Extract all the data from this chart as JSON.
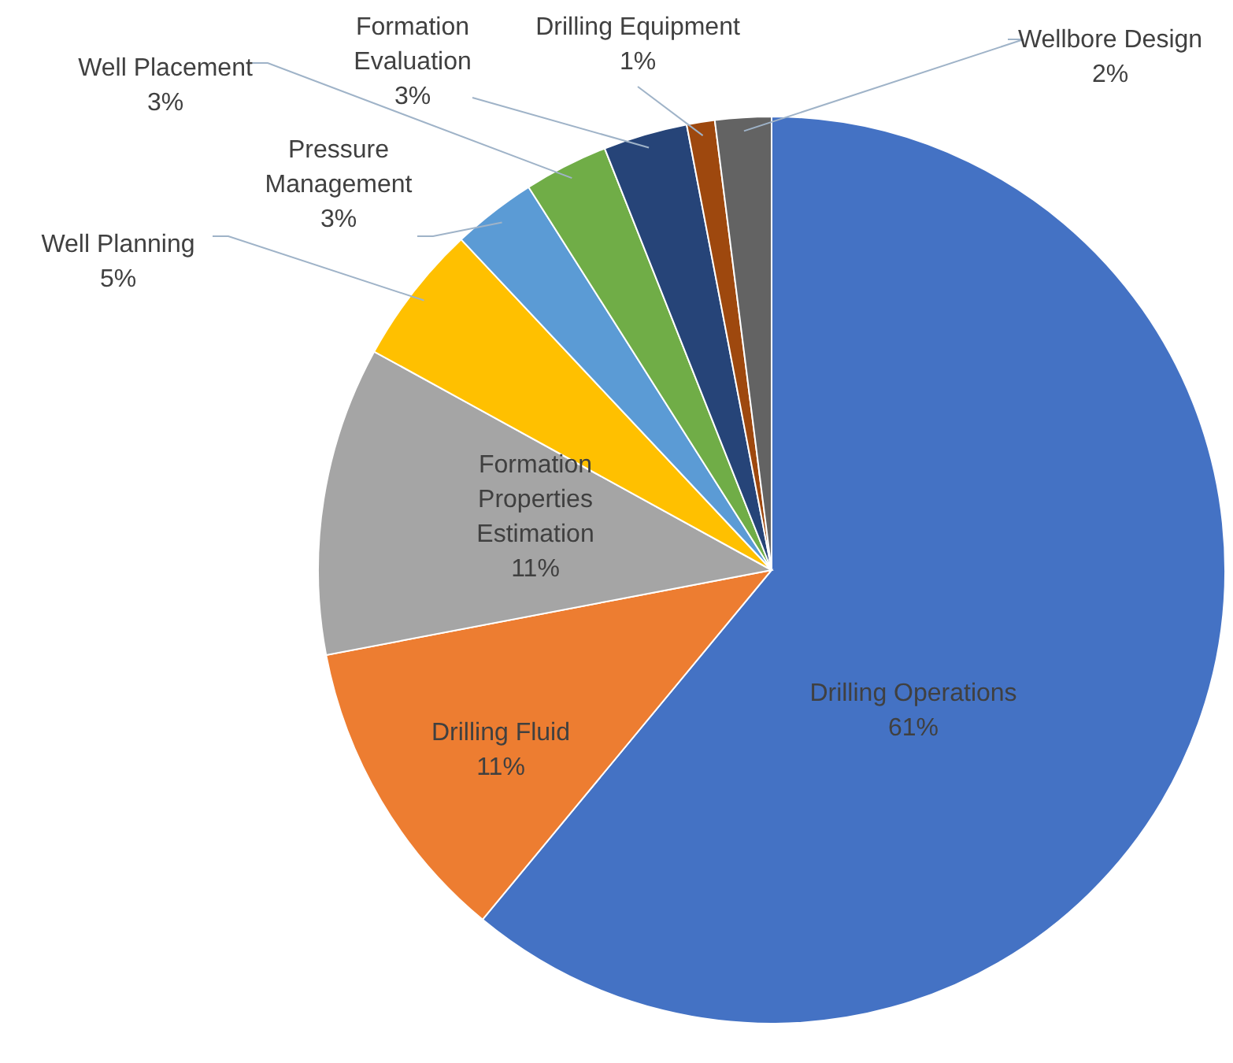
{
  "chart_data": {
    "type": "pie",
    "categories": [
      "Drilling Operations",
      "Drilling Fluid",
      "Formation Properties Estimation",
      "Well Planning",
      "Pressure Management",
      "Well Placement",
      "Formation Evaluation",
      "Drilling Equipment",
      "Wellbore Design"
    ],
    "values": [
      61,
      11,
      11,
      5,
      3,
      3,
      3,
      1,
      2
    ],
    "value_labels": [
      "61%",
      "11%",
      "11%",
      "5%",
      "3%",
      "3%",
      "3%",
      "1%",
      "2%"
    ],
    "colors": [
      "#4472c4",
      "#ed7d31",
      "#a5a5a5",
      "#ffc000",
      "#5b9bd5",
      "#70ad47",
      "#264478",
      "#9e480e",
      "#636363"
    ]
  }
}
